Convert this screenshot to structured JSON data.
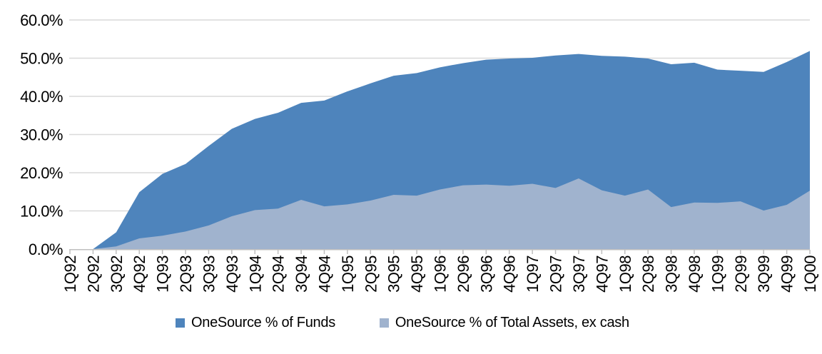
{
  "chart_data": {
    "type": "area",
    "mode": "overlapping",
    "title": "",
    "xlabel": "",
    "ylabel": "",
    "categories": [
      "1Q92",
      "2Q92",
      "3Q92",
      "4Q92",
      "1Q93",
      "2Q93",
      "3Q93",
      "4Q93",
      "1Q94",
      "2Q94",
      "3Q94",
      "4Q94",
      "1Q95",
      "2Q95",
      "3Q95",
      "4Q95",
      "1Q96",
      "2Q96",
      "3Q96",
      "4Q96",
      "1Q97",
      "2Q97",
      "3Q97",
      "4Q97",
      "1Q98",
      "2Q98",
      "3Q98",
      "4Q98",
      "1Q99",
      "2Q99",
      "3Q99",
      "4Q99",
      "1Q00"
    ],
    "series": [
      {
        "name": "OneSource % of Funds",
        "color": "#4E84BC",
        "values": [
          0.0,
          0.0,
          4.4,
          14.9,
          19.7,
          22.3,
          27.0,
          31.5,
          34.1,
          35.7,
          38.3,
          38.9,
          41.3,
          43.4,
          45.4,
          46.1,
          47.6,
          48.7,
          49.6,
          49.9,
          50.1,
          50.7,
          51.1,
          50.6,
          50.4,
          49.9,
          48.4,
          48.8,
          47.0,
          46.7,
          46.4,
          49.0,
          51.9
        ]
      },
      {
        "name": "OneSource % of Total Assets, ex cash",
        "color": "#A0B3CE",
        "values": [
          0.0,
          0.0,
          0.7,
          2.8,
          3.5,
          4.6,
          6.2,
          8.6,
          10.2,
          10.6,
          12.9,
          11.2,
          11.7,
          12.7,
          14.2,
          14.0,
          15.6,
          16.7,
          16.9,
          16.6,
          17.1,
          16.0,
          18.5,
          15.4,
          14.0,
          15.6,
          11.0,
          12.2,
          12.1,
          12.5,
          10.1,
          11.6,
          15.3
        ]
      }
    ],
    "ylim": [
      0,
      60
    ],
    "ytick_step": 10,
    "ytick_labels": [
      "0.0%",
      "10.0%",
      "20.0%",
      "30.0%",
      "40.0%",
      "50.0%",
      "60.0%"
    ],
    "grid": true,
    "legend_position": "bottom",
    "grid_color": "#D9D9D9",
    "axis_color": "#BFBFBF",
    "text_color": "#000000"
  }
}
